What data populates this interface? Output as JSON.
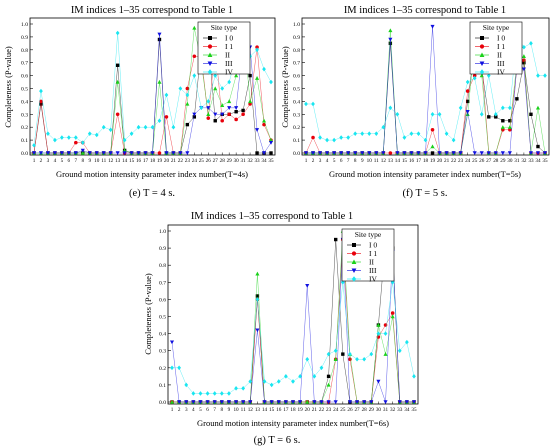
{
  "figure": {
    "panels": [
      {
        "title": "IM indices 1–35 correspond to Table 1",
        "xlabel": "Ground motion intensity parameter index number(T=4s)",
        "ylabel": "Completeness (P-value)",
        "caption": "(e) T = 4 s."
      },
      {
        "title": "IM indices 1–35 correspond to Table 1",
        "xlabel": "Ground motion intensity parameter index number(T=5s)",
        "ylabel": "Completeness (P-value)",
        "caption": "(f) T = 5 s."
      },
      {
        "title": "IM indices 1–35 correspond to Table 1",
        "xlabel": "Ground motion intensity parameter index number(T=6s)",
        "ylabel": "Completeness (P-value)",
        "caption": "(g) T = 6 s."
      }
    ],
    "legend": {
      "title": "Site type",
      "entries": [
        "I 0",
        "I 1",
        "II",
        "III",
        "IV"
      ]
    },
    "colors": {
      "I0": "#000000",
      "I1": "#e8000b",
      "II": "#1ad11a",
      "III": "#1010e0",
      "IV": "#19e6f0"
    },
    "markers": {
      "I0": "square",
      "I1": "circle",
      "II": "triangle-up",
      "III": "triangle-down",
      "IV": "diamond"
    }
  },
  "chart_data": [
    {
      "type": "line",
      "title": "IM indices 1–35 correspond to Table 1",
      "xlabel": "Ground motion intensity parameter index number(T=4s)",
      "ylabel": "Completeness (P-value)",
      "ylim": [
        0,
        1.0
      ],
      "yticks": [
        0.0,
        0.1,
        0.2,
        0.3,
        0.4,
        0.5,
        0.6,
        0.7,
        0.8,
        0.9,
        1.0
      ],
      "categories": [
        "1",
        "2",
        "3",
        "4",
        "5",
        "6",
        "7",
        "8",
        "9",
        "10",
        "11",
        "12",
        "13",
        "14",
        "15",
        "16",
        "17",
        "18",
        "19",
        "20",
        "21",
        "22",
        "23",
        "24",
        "25",
        "26",
        "27",
        "28",
        "29",
        "30",
        "31",
        "32",
        "33",
        "34",
        "35"
      ],
      "legend_title": "Site type",
      "legend_position": "top-right",
      "grid": false,
      "series": [
        {
          "name": "I 0",
          "values": [
            0.0,
            0.38,
            0.0,
            0.0,
            0.0,
            0.0,
            0.0,
            0.0,
            0.0,
            0.0,
            0.0,
            0.0,
            0.68,
            0.02,
            0.0,
            0.0,
            0.0,
            0.0,
            0.88,
            0.0,
            0.0,
            0.0,
            0.22,
            0.28,
            0.82,
            0.88,
            0.25,
            0.3,
            0.3,
            0.32,
            0.33,
            0.6,
            0.0,
            0.0,
            0.0
          ]
        },
        {
          "name": "I 1",
          "values": [
            0.0,
            0.4,
            0.0,
            0.0,
            0.0,
            0.0,
            0.08,
            0.08,
            0.0,
            0.0,
            0.0,
            0.0,
            0.3,
            0.0,
            0.0,
            0.0,
            0.0,
            0.0,
            0.0,
            0.28,
            0.0,
            0.0,
            0.5,
            0.75,
            0.75,
            0.27,
            0.83,
            0.25,
            0.3,
            0.26,
            0.3,
            0.38,
            0.82,
            0.22,
            0.1
          ]
        },
        {
          "name": "II",
          "values": [
            0.0,
            0.0,
            0.0,
            0.0,
            0.0,
            0.0,
            0.0,
            0.0,
            0.0,
            0.0,
            0.0,
            0.0,
            0.55,
            0.02,
            0.0,
            0.0,
            0.0,
            0.0,
            0.55,
            0.0,
            0.0,
            0.0,
            0.38,
            0.97,
            0.7,
            0.3,
            0.5,
            0.37,
            0.4,
            0.6,
            0.98,
            0.4,
            0.58,
            0.25,
            0.1
          ]
        },
        {
          "name": "III",
          "values": [
            0.0,
            0.0,
            0.0,
            0.0,
            0.0,
            0.0,
            0.0,
            0.02,
            0.0,
            0.0,
            0.0,
            0.0,
            0.0,
            0.0,
            0.0,
            0.0,
            0.0,
            0.0,
            0.92,
            0.0,
            0.0,
            0.0,
            0.0,
            0.3,
            0.35,
            0.35,
            0.3,
            0.3,
            0.35,
            0.35,
            0.85,
            0.82,
            0.18,
            0.0,
            0.08
          ]
        },
        {
          "name": "IV",
          "values": [
            0.06,
            0.48,
            0.15,
            0.1,
            0.12,
            0.12,
            0.12,
            0.08,
            0.15,
            0.14,
            0.2,
            0.18,
            0.93,
            0.1,
            0.15,
            0.2,
            0.2,
            0.2,
            0.25,
            0.45,
            0.2,
            0.5,
            0.45,
            0.6,
            0.35,
            0.4,
            0.6,
            0.5,
            0.55,
            0.75,
            0.92,
            0.75,
            0.8,
            0.65,
            0.55
          ]
        }
      ]
    },
    {
      "type": "line",
      "title": "IM indices 1–35 correspond to Table 1",
      "xlabel": "Ground motion intensity parameter index number(T=5s)",
      "ylabel": "Completeness (P-value)",
      "ylim": [
        0,
        1.0
      ],
      "yticks": [
        0.0,
        0.1,
        0.2,
        0.3,
        0.4,
        0.5,
        0.6,
        0.7,
        0.8,
        0.9,
        1.0
      ],
      "categories": [
        "1",
        "2",
        "3",
        "4",
        "5",
        "6",
        "7",
        "8",
        "9",
        "10",
        "11",
        "12",
        "13",
        "14",
        "15",
        "16",
        "17",
        "18",
        "19",
        "20",
        "21",
        "22",
        "23",
        "24",
        "25",
        "26",
        "27",
        "28",
        "29",
        "30",
        "31",
        "32",
        "33",
        "34",
        "35"
      ],
      "legend_title": "Site type",
      "legend_position": "top-right",
      "grid": false,
      "series": [
        {
          "name": "I 0",
          "values": [
            0.0,
            0.0,
            0.0,
            0.0,
            0.0,
            0.0,
            0.0,
            0.0,
            0.0,
            0.0,
            0.0,
            0.0,
            0.85,
            0.0,
            0.0,
            0.0,
            0.0,
            0.0,
            0.0,
            0.0,
            0.0,
            0.0,
            0.0,
            0.4,
            0.82,
            0.65,
            0.28,
            0.28,
            0.25,
            0.25,
            0.42,
            0.7,
            0.3,
            0.05,
            0.0
          ]
        },
        {
          "name": "I 1",
          "values": [
            0.0,
            0.12,
            0.0,
            0.0,
            0.0,
            0.0,
            0.0,
            0.0,
            0.0,
            0.0,
            0.0,
            0.0,
            0.0,
            0.0,
            0.0,
            0.0,
            0.0,
            0.0,
            0.18,
            0.0,
            0.0,
            0.0,
            0.0,
            0.48,
            0.6,
            0.7,
            0.0,
            0.0,
            0.18,
            0.18,
            0.65,
            0.72,
            0.0,
            0.0,
            0.0
          ]
        },
        {
          "name": "II",
          "values": [
            0.0,
            0.0,
            0.0,
            0.0,
            0.0,
            0.0,
            0.0,
            0.0,
            0.0,
            0.0,
            0.0,
            0.0,
            0.95,
            0.0,
            0.0,
            0.0,
            0.0,
            0.0,
            0.05,
            0.0,
            0.0,
            0.0,
            0.0,
            0.3,
            0.85,
            0.6,
            0.0,
            0.0,
            0.2,
            0.2,
            0.7,
            0.75,
            0.0,
            0.35,
            0.0
          ]
        },
        {
          "name": "III",
          "values": [
            0.0,
            0.0,
            0.0,
            0.0,
            0.0,
            0.0,
            0.0,
            0.0,
            0.0,
            0.0,
            0.0,
            0.0,
            0.88,
            0.0,
            0.0,
            0.0,
            0.0,
            0.0,
            0.98,
            0.0,
            0.0,
            0.0,
            0.0,
            0.32,
            0.0,
            0.0,
            0.0,
            0.0,
            0.0,
            0.0,
            0.68,
            0.65,
            0.0,
            0.0,
            0.0
          ]
        },
        {
          "name": "IV",
          "values": [
            0.38,
            0.38,
            0.12,
            0.1,
            0.1,
            0.12,
            0.12,
            0.15,
            0.15,
            0.15,
            0.15,
            0.2,
            0.35,
            0.3,
            0.12,
            0.15,
            0.15,
            0.1,
            0.3,
            0.3,
            0.15,
            0.1,
            0.35,
            0.55,
            0.58,
            0.3,
            0.6,
            0.3,
            0.35,
            0.35,
            0.9,
            0.82,
            0.85,
            0.6,
            0.6
          ]
        }
      ]
    },
    {
      "type": "line",
      "title": "IM indices 1–35 correspond to Table 1",
      "xlabel": "Ground motion intensity parameter index number(T=6s)",
      "ylabel": "Completeness (P-value)",
      "ylim": [
        0,
        1.0
      ],
      "yticks": [
        0.0,
        0.1,
        0.2,
        0.3,
        0.4,
        0.5,
        0.6,
        0.7,
        0.8,
        0.9,
        1.0
      ],
      "categories": [
        "1",
        "2",
        "3",
        "4",
        "5",
        "6",
        "7",
        "8",
        "9",
        "10",
        "11",
        "12",
        "13",
        "14",
        "15",
        "16",
        "17",
        "18",
        "19",
        "20",
        "21",
        "22",
        "23",
        "24",
        "25",
        "26",
        "27",
        "28",
        "29",
        "30",
        "31",
        "32",
        "33",
        "34",
        "35"
      ],
      "legend_title": "Site type",
      "legend_position": "top-right",
      "grid": false,
      "series": [
        {
          "name": "I 0",
          "values": [
            0.0,
            0.0,
            0.0,
            0.0,
            0.0,
            0.0,
            0.0,
            0.0,
            0.0,
            0.0,
            0.0,
            0.0,
            0.62,
            0.0,
            0.0,
            0.0,
            0.0,
            0.0,
            0.0,
            0.0,
            0.0,
            0.0,
            0.15,
            0.95,
            0.28,
            0.0,
            0.0,
            0.0,
            0.0,
            0.45,
            0.95,
            0.9,
            0.0,
            0.0,
            0.0
          ]
        },
        {
          "name": "I 1",
          "values": [
            0.0,
            0.0,
            0.0,
            0.0,
            0.0,
            0.0,
            0.0,
            0.0,
            0.0,
            0.0,
            0.0,
            0.0,
            0.6,
            0.0,
            0.0,
            0.0,
            0.0,
            0.0,
            0.0,
            0.0,
            0.0,
            0.0,
            0.0,
            0.25,
            0.95,
            0.25,
            0.0,
            0.0,
            0.0,
            0.38,
            0.45,
            0.52,
            0.0,
            0.0,
            0.0
          ]
        },
        {
          "name": "II",
          "values": [
            0.0,
            0.0,
            0.0,
            0.0,
            0.0,
            0.0,
            0.0,
            0.0,
            0.0,
            0.0,
            0.0,
            0.0,
            0.75,
            0.0,
            0.0,
            0.0,
            0.0,
            0.0,
            0.0,
            0.0,
            0.0,
            0.0,
            0.1,
            0.25,
            1.0,
            0.28,
            0.0,
            0.0,
            0.0,
            0.45,
            0.28,
            0.5,
            0.0,
            0.0,
            0.0
          ]
        },
        {
          "name": "III",
          "values": [
            0.35,
            0.0,
            0.0,
            0.0,
            0.0,
            0.0,
            0.0,
            0.0,
            0.0,
            0.0,
            0.0,
            0.0,
            0.42,
            0.0,
            0.0,
            0.0,
            0.0,
            0.0,
            0.0,
            0.68,
            0.0,
            0.0,
            0.0,
            0.0,
            0.95,
            0.0,
            0.0,
            0.0,
            0.0,
            0.12,
            0.0,
            0.88,
            0.0,
            0.0,
            0.0
          ]
        },
        {
          "name": "IV",
          "values": [
            0.2,
            0.2,
            0.1,
            0.05,
            0.05,
            0.05,
            0.05,
            0.05,
            0.05,
            0.08,
            0.08,
            0.12,
            0.6,
            0.12,
            0.1,
            0.12,
            0.15,
            0.12,
            0.15,
            0.25,
            0.15,
            0.2,
            0.28,
            0.3,
            0.7,
            0.28,
            0.25,
            0.25,
            0.28,
            0.4,
            0.4,
            0.7,
            0.3,
            0.35,
            0.15
          ]
        }
      ]
    }
  ]
}
